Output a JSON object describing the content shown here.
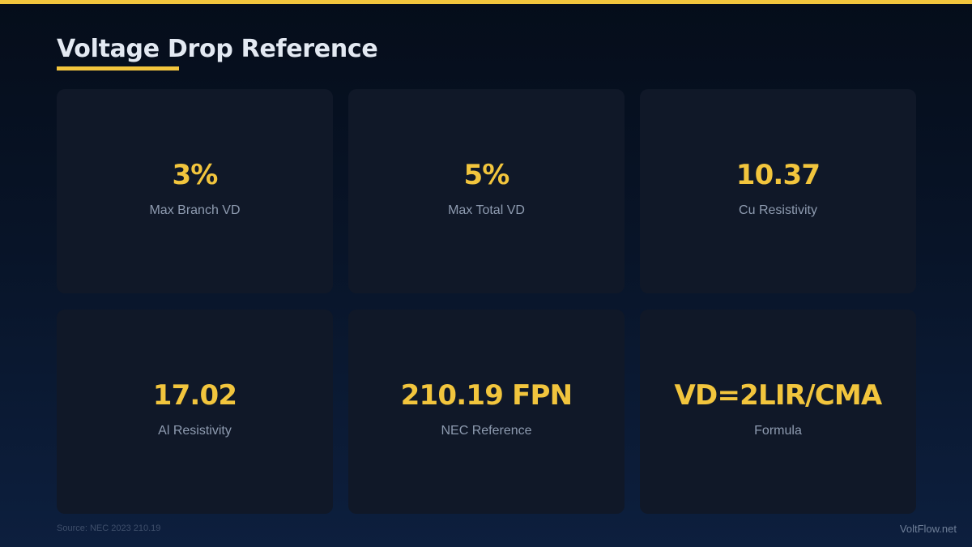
{
  "header": {
    "title": "Voltage Drop Reference"
  },
  "cards": [
    {
      "value": "3%",
      "label": "Max Branch VD"
    },
    {
      "value": "5%",
      "label": "Max Total VD"
    },
    {
      "value": "10.37",
      "label": "Cu Resistivity"
    },
    {
      "value": "17.02",
      "label": "Al Resistivity"
    },
    {
      "value": "210.19 FPN",
      "label": "NEC Reference"
    },
    {
      "value": "VD=2LIR/CMA",
      "label": "Formula"
    }
  ],
  "footer": {
    "source": "Source: NEC 2023 210.19",
    "brand": "VoltFlow.net"
  },
  "colors": {
    "accent": "#f2c53d",
    "card_bg": "#101828",
    "title": "#e3e9f2",
    "label": "#8e9bb0"
  }
}
